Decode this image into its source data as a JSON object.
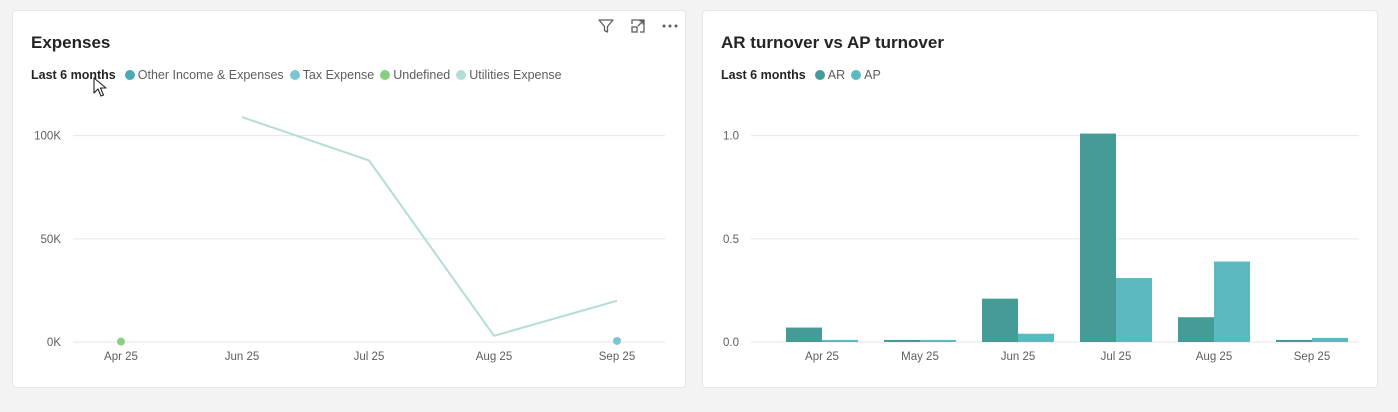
{
  "colors": {
    "other_income": "#4fa9b0",
    "tax_expense": "#7cc6d4",
    "undefined": "#89cf80",
    "utilities": "#b4ddd8",
    "ar": "#459c96",
    "ap": "#5bbac0",
    "grid": "#e6e6e6"
  },
  "toolbar": {
    "filter_icon": "filter-icon",
    "focus_icon": "focus-mode-icon",
    "more_icon": "more-options-icon"
  },
  "chart_data": [
    {
      "type": "line",
      "title": "Expenses",
      "legend_title": "Last 6 months",
      "legend": [
        "Other Income & Expenses",
        "Tax Expense",
        "Undefined",
        "Utilities Expense"
      ],
      "categories": [
        "Apr 25",
        "Jun 25",
        "Jul 25",
        "Aug 25",
        "Sep 25"
      ],
      "ylim": [
        0,
        110000
      ],
      "yticks": [
        {
          "value": 0,
          "label": "0K"
        },
        {
          "value": 50000,
          "label": "50K"
        },
        {
          "value": 100000,
          "label": "100K"
        }
      ],
      "grid": true,
      "series": [
        {
          "name": "Other Income & Expenses",
          "values": [
            null,
            null,
            null,
            null,
            null
          ]
        },
        {
          "name": "Tax Expense",
          "values": [
            null,
            null,
            null,
            null,
            500
          ]
        },
        {
          "name": "Undefined",
          "values": [
            200,
            null,
            null,
            null,
            null
          ]
        },
        {
          "name": "Utilities Expense",
          "values": [
            null,
            109000,
            88000,
            3000,
            20000
          ]
        }
      ]
    },
    {
      "type": "bar",
      "title": "AR turnover vs AP turnover",
      "legend_title": "Last 6 months",
      "legend": [
        "AR",
        "AP"
      ],
      "categories": [
        "Apr 25",
        "May 25",
        "Jun 25",
        "Jul 25",
        "Aug 25",
        "Sep 25"
      ],
      "ylim": [
        0,
        1.1
      ],
      "yticks": [
        {
          "value": 0,
          "label": "0.0"
        },
        {
          "value": 0.5,
          "label": "0.5"
        },
        {
          "value": 1.0,
          "label": "1.0"
        }
      ],
      "grid": true,
      "series": [
        {
          "name": "AR",
          "values": [
            0.07,
            0.01,
            0.21,
            1.01,
            0.12,
            0.01
          ]
        },
        {
          "name": "AP",
          "values": [
            0.01,
            0.01,
            0.04,
            0.31,
            0.39,
            0.02
          ]
        }
      ]
    }
  ]
}
